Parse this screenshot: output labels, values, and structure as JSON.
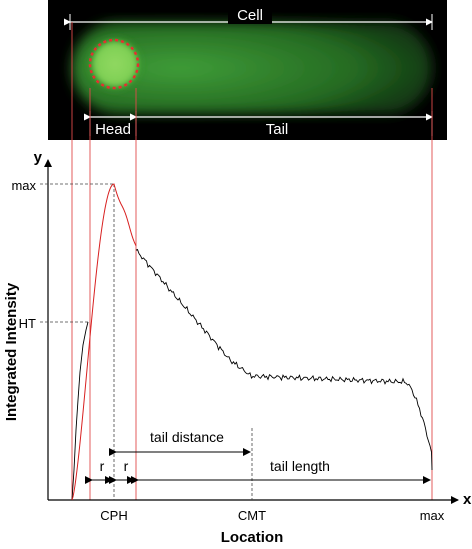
{
  "micrograph": {
    "cell_label": "Cell",
    "head_label": "Head",
    "tail_label": "Tail"
  },
  "axes": {
    "y_letter": "y",
    "x_letter": "x",
    "y_title": "Integrated Intensity",
    "x_title": "Location"
  },
  "y_ticks": {
    "max": "max",
    "ht": "HT"
  },
  "x_ticks": {
    "cph": "CPH",
    "cmt": "CMT",
    "max": "max"
  },
  "annotations": {
    "r_left": "r",
    "r_right": "r",
    "tail_distance": "tail distance",
    "tail_length": "tail length"
  },
  "colors": {
    "background": "#ffffff",
    "ink": "#000000",
    "guide_red": "#e04a4a",
    "head_curve": "#d82020",
    "micrograph_bg": "#000000",
    "comet_green": "#3aa23a",
    "head_circle": "#e53030"
  }
}
